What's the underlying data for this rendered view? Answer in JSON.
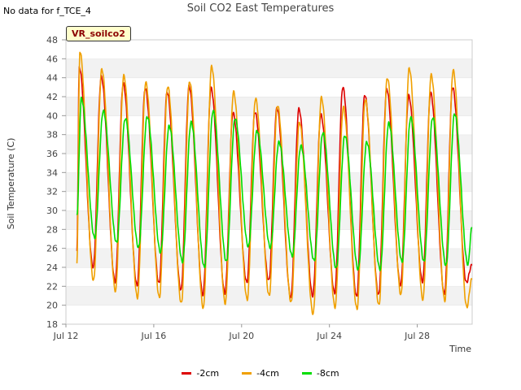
{
  "page": {
    "nodata_text": "No data for f_TCE_4",
    "station_label": "VR_soilco2"
  },
  "chart_data": {
    "type": "line",
    "title": "Soil CO2 East Temperatures",
    "xlabel": "Time",
    "ylabel": "Soil Temperature (C)",
    "ylim": [
      18,
      48
    ],
    "yticks": [
      18,
      20,
      22,
      24,
      26,
      28,
      30,
      32,
      34,
      36,
      38,
      40,
      42,
      44,
      46,
      48
    ],
    "xlim": [
      "2024-07-12",
      "2024-07-30T12:00"
    ],
    "xtick_labels": [
      "Jul 12",
      "Jul 16",
      "Jul 20",
      "Jul 24",
      "Jul 28"
    ],
    "grid": "horizontal bands",
    "legend_position": "bottom",
    "colors": {
      "-2cm": "#dd0000",
      "-4cm": "#f0a000",
      "-8cm": "#00dd00"
    },
    "series": [
      {
        "name": "-2cm",
        "start": "2024-07-12T12:00",
        "start_value": 25.7,
        "end_value": 24.2,
        "daily_max": [
          45.1,
          44.1,
          43.4,
          42.9,
          42.5,
          43.1,
          42.9,
          40.3,
          40.4,
          40.8,
          40.7,
          40.1,
          43.0,
          42.2,
          42.8,
          42.1,
          42.4,
          43.0
        ],
        "daily_min": [
          24.0,
          22.5,
          22.1,
          22.3,
          21.6,
          21.1,
          21.3,
          22.4,
          22.6,
          20.8,
          21.0,
          21.3,
          20.9,
          21.1,
          22.1,
          22.5,
          21.2,
          22.4
        ]
      },
      {
        "name": "-4cm",
        "start": "2024-07-12T12:00",
        "start_value": 24.4,
        "end_value": 22.7,
        "daily_max": [
          46.8,
          44.9,
          44.2,
          43.5,
          43.1,
          43.6,
          45.2,
          42.5,
          41.8,
          41.1,
          39.3,
          41.9,
          40.9,
          41.7,
          44.0,
          45.0,
          44.3,
          44.8
        ],
        "daily_min": [
          22.6,
          21.5,
          20.8,
          20.8,
          20.2,
          19.7,
          20.2,
          20.6,
          21.0,
          20.3,
          19.1,
          19.8,
          19.6,
          20.0,
          21.1,
          20.6,
          20.5,
          19.8
        ]
      },
      {
        "name": "-8cm",
        "start": "2024-07-12T12:00",
        "start_value": 29.5,
        "end_value": 28.1,
        "daily_max": [
          41.8,
          40.5,
          39.7,
          39.9,
          38.9,
          39.3,
          40.5,
          39.7,
          38.4,
          37.2,
          36.8,
          38.2,
          37.9,
          37.2,
          39.2,
          39.8,
          39.8,
          40.2
        ],
        "daily_min": [
          27.1,
          26.6,
          26.1,
          25.6,
          24.6,
          24.0,
          24.6,
          26.2,
          26.1,
          25.2,
          24.7,
          23.9,
          23.8,
          23.8,
          24.6,
          24.6,
          24.2,
          24.3
        ]
      }
    ]
  }
}
